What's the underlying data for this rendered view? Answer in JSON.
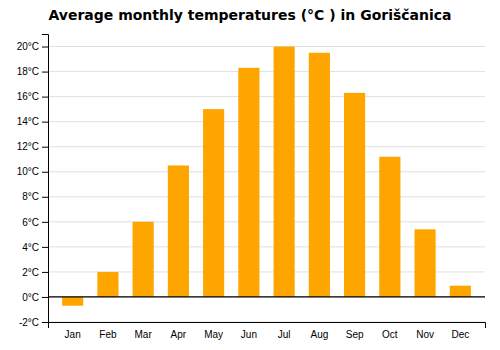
{
  "chart_data": {
    "type": "bar",
    "title": "Average monthly temperatures (°C ) in Goriščanica",
    "categories": [
      "Jan",
      "Feb",
      "Mar",
      "Apr",
      "May",
      "Jun",
      "Jul",
      "Aug",
      "Sep",
      "Oct",
      "Nov",
      "Dec"
    ],
    "values": [
      -0.7,
      2.0,
      6.0,
      10.5,
      15.0,
      18.3,
      20.0,
      19.5,
      16.3,
      11.2,
      5.4,
      0.9
    ],
    "color": "#FFA500",
    "ylim": [
      -2,
      21
    ],
    "yticks": [
      {
        "value": -2,
        "label": "-2°C"
      },
      {
        "value": 0,
        "label": "0°C"
      },
      {
        "value": 2,
        "label": "2°C"
      },
      {
        "value": 4,
        "label": "4°C"
      },
      {
        "value": 6,
        "label": "6°C"
      },
      {
        "value": 8,
        "label": "8°C"
      },
      {
        "value": 10,
        "label": "10°C"
      },
      {
        "value": 12,
        "label": "12°C"
      },
      {
        "value": 14,
        "label": "14°C"
      },
      {
        "value": 16,
        "label": "16°C"
      },
      {
        "value": 18,
        "label": "18°C"
      },
      {
        "value": 20,
        "label": "20°C"
      }
    ],
    "grid": true
  }
}
